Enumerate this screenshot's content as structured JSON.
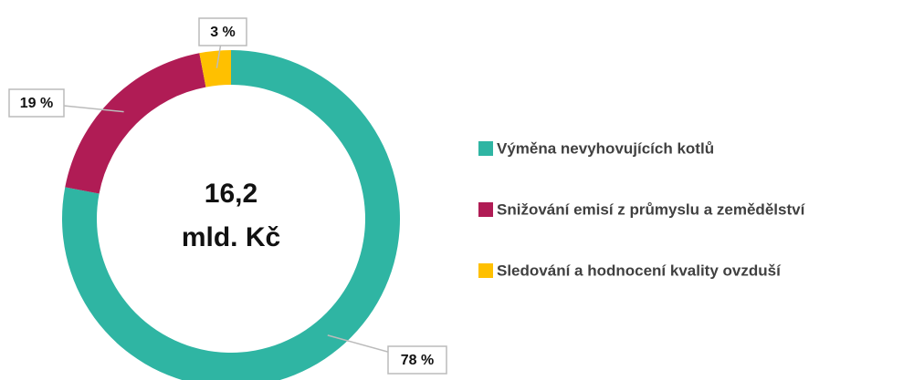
{
  "chart_data": {
    "type": "donut",
    "categories": [
      "Výměna nevyhovujících kotlů",
      "Snižování emisí z průmyslu a zemědělství",
      "Sledování a hodnocení kvality ovzduší"
    ],
    "values": [
      78,
      19,
      3
    ],
    "value_labels": [
      "78 %",
      "19 %",
      "3 %"
    ],
    "colors": [
      "#2fb5a3",
      "#b01c55",
      "#ffc000"
    ],
    "center_text": [
      "16,2",
      "mld. Kč"
    ],
    "legend": "right"
  }
}
